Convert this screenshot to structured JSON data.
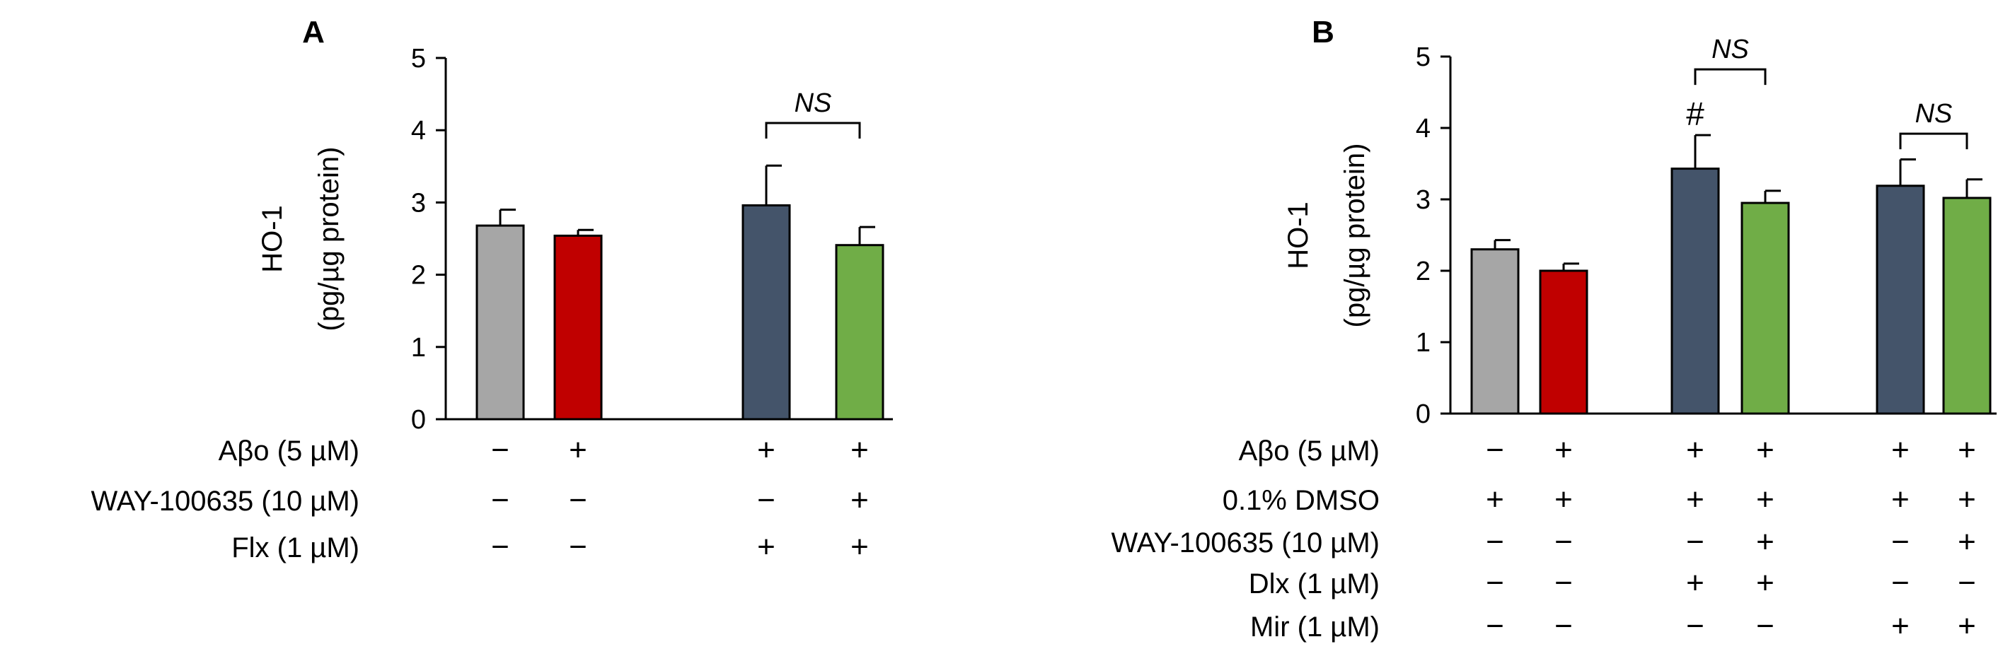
{
  "chart_data": [
    {
      "type": "bar",
      "panel": "A",
      "ylabel_line1": "HO-1",
      "ylabel_line2": "(pg/µg protein)",
      "ylim": [
        0,
        5
      ],
      "yticks": [
        "0",
        "1",
        "2",
        "3",
        "4",
        "5"
      ],
      "bars": [
        {
          "value": 2.68,
          "error": 0.22,
          "color": "#a6a6a6"
        },
        {
          "value": 2.54,
          "error": 0.08,
          "color": "#c00000"
        },
        {
          "value": 2.96,
          "error": 0.55,
          "color": "#44546a"
        },
        {
          "value": 2.41,
          "error": 0.25,
          "color": "#70ad47"
        }
      ],
      "annotations": [
        {
          "type": "bracket",
          "text": "NS",
          "from_bar": 2,
          "to_bar": 3,
          "at_value": 4.1
        }
      ],
      "treatments": [
        {
          "label": "Aβo (5 µM)",
          "signs": [
            "−",
            "+",
            "+",
            "+"
          ]
        },
        {
          "label": "WAY-100635 (10 µM)",
          "signs": [
            "−",
            "−",
            "−",
            "+"
          ]
        },
        {
          "label": "Flx (1 µM)",
          "signs": [
            "−",
            "−",
            "+",
            "+"
          ]
        }
      ]
    },
    {
      "type": "bar",
      "panel": "B",
      "ylabel_line1": "HO-1",
      "ylabel_line2": "(pg/µg protein)",
      "ylim": [
        0,
        5
      ],
      "yticks": [
        "0",
        "1",
        "2",
        "3",
        "4",
        "5"
      ],
      "bars": [
        {
          "value": 2.3,
          "error": 0.13,
          "color": "#a6a6a6"
        },
        {
          "value": 2.0,
          "error": 0.1,
          "color": "#c00000"
        },
        {
          "value": 3.43,
          "error": 0.47,
          "color": "#44546a"
        },
        {
          "value": 2.95,
          "error": 0.17,
          "color": "#70ad47"
        },
        {
          "value": 3.19,
          "error": 0.37,
          "color": "#44546a"
        },
        {
          "value": 3.02,
          "error": 0.26,
          "color": "#70ad47"
        }
      ],
      "annotations": [
        {
          "type": "bracket",
          "text": "NS",
          "from_bar": 2,
          "to_bar": 3,
          "at_value": 4.82
        },
        {
          "type": "bracket",
          "text": "NS",
          "from_bar": 4,
          "to_bar": 5,
          "at_value": 3.92
        },
        {
          "type": "marker",
          "text": "#",
          "bar": 2
        }
      ],
      "treatments": [
        {
          "label": "Aβo (5 µM)",
          "signs": [
            "−",
            "+",
            "+",
            "+",
            "+",
            "+"
          ]
        },
        {
          "label": "0.1% DMSO",
          "signs": [
            "+",
            "+",
            "+",
            "+",
            "+",
            "+"
          ]
        },
        {
          "label": "WAY-100635 (10 µM)",
          "signs": [
            "−",
            "−",
            "−",
            "+",
            "−",
            "+"
          ]
        },
        {
          "label": "Dlx (1 µM)",
          "signs": [
            "−",
            "−",
            "+",
            "+",
            "−",
            "−"
          ]
        },
        {
          "label": "Mir (1 µM)",
          "signs": [
            "−",
            "−",
            "−",
            "−",
            "+",
            "+"
          ]
        }
      ]
    }
  ]
}
